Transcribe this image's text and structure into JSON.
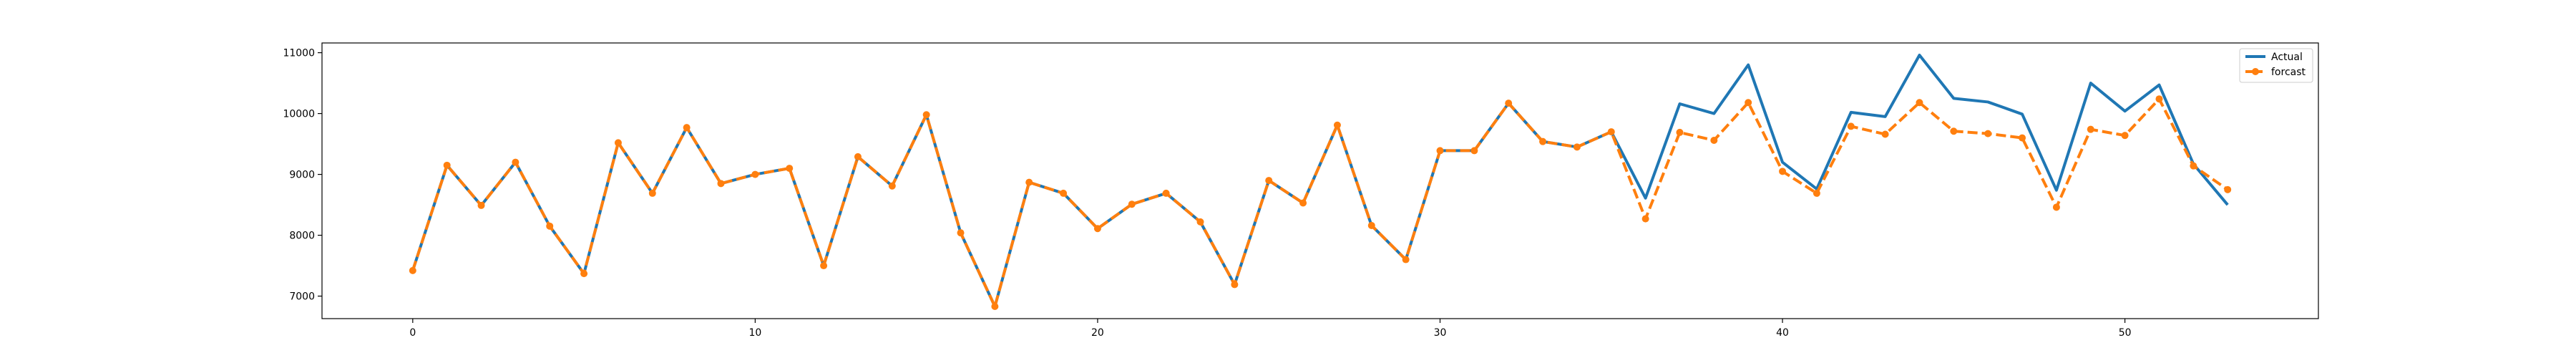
{
  "chart_data": {
    "type": "line",
    "title": "",
    "xlabel": "",
    "ylabel": "",
    "xlim": [
      -2.65,
      55.65
    ],
    "ylim": [
      6630,
      11160
    ],
    "xticks": [
      0,
      10,
      20,
      30,
      40,
      50
    ],
    "yticks": [
      7000,
      8000,
      9000,
      10000,
      11000
    ],
    "grid": false,
    "legend_position": "top-right",
    "series": [
      {
        "name": "Actual",
        "color": "#1f77b4",
        "style": "solid",
        "marker": "none",
        "x": [
          0,
          1,
          2,
          3,
          4,
          5,
          6,
          7,
          8,
          9,
          10,
          11,
          12,
          13,
          14,
          15,
          16,
          17,
          18,
          19,
          20,
          21,
          22,
          23,
          24,
          25,
          26,
          27,
          28,
          29,
          30,
          31,
          32,
          33,
          34,
          35,
          36,
          37,
          38,
          39,
          40,
          41,
          42,
          43,
          44,
          45,
          46,
          47,
          48,
          49,
          50,
          51,
          52,
          53
        ],
        "values": [
          7420,
          9150,
          8490,
          9200,
          8150,
          7370,
          9520,
          8690,
          9770,
          8850,
          9000,
          9100,
          7500,
          9290,
          8810,
          9980,
          8040,
          6830,
          8870,
          8690,
          8110,
          8510,
          8690,
          8220,
          7190,
          8900,
          8530,
          9810,
          8160,
          7600,
          9390,
          9390,
          10170,
          9540,
          9450,
          9700,
          8610,
          10160,
          10000,
          10800,
          9200,
          8760,
          10020,
          9950,
          10960,
          10250,
          10190,
          9990,
          8740,
          10500,
          10040,
          10470,
          9170,
          8500
        ]
      },
      {
        "name": "forcast",
        "color": "#ff7f0e",
        "style": "dashed",
        "marker": "circle",
        "x": [
          0,
          1,
          2,
          3,
          4,
          5,
          6,
          7,
          8,
          9,
          10,
          11,
          12,
          13,
          14,
          15,
          16,
          17,
          18,
          19,
          20,
          21,
          22,
          23,
          24,
          25,
          26,
          27,
          28,
          29,
          30,
          31,
          32,
          33,
          34,
          35,
          36,
          37,
          38,
          39,
          40,
          41,
          42,
          43,
          44,
          45,
          46,
          47,
          48,
          49,
          50,
          51,
          52,
          53
        ],
        "values": [
          7420,
          9150,
          8490,
          9200,
          8150,
          7370,
          9520,
          8690,
          9770,
          8850,
          9000,
          9100,
          7500,
          9290,
          8810,
          9980,
          8040,
          6830,
          8870,
          8690,
          8110,
          8510,
          8690,
          8220,
          7190,
          8900,
          8530,
          9810,
          8160,
          7600,
          9390,
          9390,
          10170,
          9540,
          9450,
          9700,
          8270,
          9690,
          9560,
          10180,
          9050,
          8690,
          9790,
          9660,
          10180,
          9710,
          9670,
          9600,
          8460,
          9740,
          9640,
          10240,
          9140,
          8750
        ]
      }
    ]
  }
}
